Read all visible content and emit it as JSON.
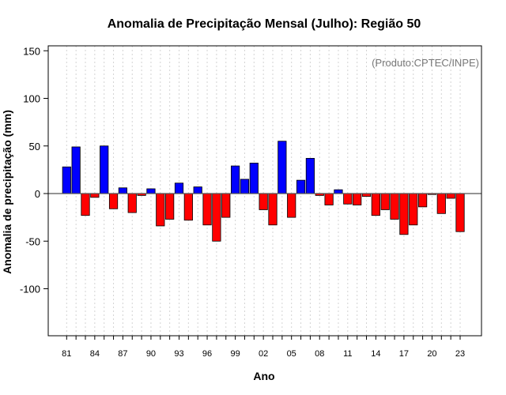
{
  "chart_data": {
    "type": "bar",
    "title": "Anomalia de Precipitação Mensal (Julho): Região 50",
    "credit": "(Produto:CPTEC/INPE)",
    "xlabel": "Ano",
    "ylabel": "Anomalia de precipitação (mm)",
    "ylim": [
      -150,
      155
    ],
    "y_ticks": [
      -100,
      -50,
      0,
      50,
      100,
      150
    ],
    "x_tick_labels": [
      "81",
      "84",
      "87",
      "90",
      "93",
      "96",
      "99",
      "02",
      "05",
      "08",
      "11",
      "14",
      "17",
      "20",
      "23"
    ],
    "categories": [
      1981,
      1982,
      1983,
      1984,
      1985,
      1986,
      1987,
      1988,
      1989,
      1990,
      1991,
      1992,
      1993,
      1994,
      1995,
      1996,
      1997,
      1998,
      1999,
      2000,
      2001,
      2002,
      2003,
      2004,
      2005,
      2006,
      2007,
      2008,
      2009,
      2010,
      2011,
      2012,
      2013,
      2014,
      2015,
      2016,
      2017,
      2018,
      2019,
      2020,
      2021,
      2022,
      2023
    ],
    "values": [
      28,
      49,
      -23,
      -4,
      50,
      -16,
      6,
      -20,
      -2,
      5,
      -34,
      -27,
      11,
      -28,
      7,
      -33,
      -50,
      -25,
      29,
      15,
      32,
      -17,
      -33,
      55,
      -25,
      14,
      37,
      -2,
      -12,
      4,
      -11,
      -12,
      -3,
      -23,
      -17,
      -27,
      -43,
      -33,
      -14,
      -1,
      -21,
      -5,
      -40
    ],
    "colors": {
      "positive": "#0000ff",
      "negative": "#ff0000",
      "zero_line": "#555555",
      "grid": "#d3d3d3"
    },
    "grid": true
  }
}
